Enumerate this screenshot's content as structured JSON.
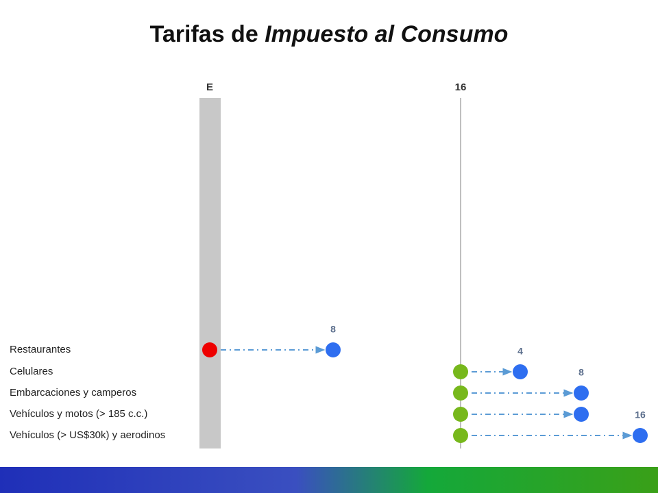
{
  "title": {
    "plain": "Tarifas de",
    "italic": "Impuesto al Consumo"
  },
  "columns": [
    "E",
    "16"
  ],
  "rows": [
    {
      "label": "Restaurantes",
      "to": "8"
    },
    {
      "label": "Celulares",
      "to": "4"
    },
    {
      "label": "Embarcaciones y camperos",
      "to": "8"
    },
    {
      "label": "Vehículos y motos (> 185 c.c.)"
    },
    {
      "label": "Vehículos (> US$30k) y aerodinos",
      "to": "16"
    }
  ]
}
